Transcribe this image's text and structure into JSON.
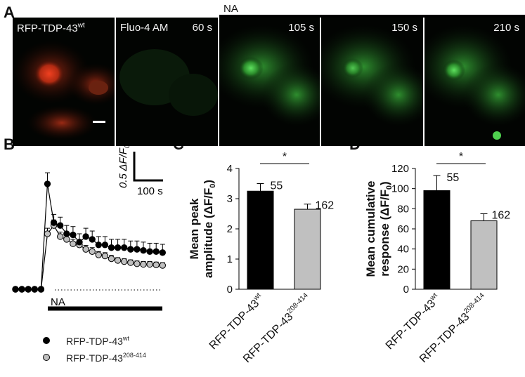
{
  "panel_letters": [
    "A",
    "B",
    "C",
    "D"
  ],
  "panelA": {
    "stimulus_label": "NA",
    "images": [
      {
        "label_main": "RFP-TDP-43",
        "label_sup": "wt",
        "time": ""
      },
      {
        "label_main": "Fluo-4 AM",
        "label_sup": "",
        "time": "60 s"
      },
      {
        "label_main": "",
        "label_sup": "",
        "time": "105 s"
      },
      {
        "label_main": "",
        "label_sup": "",
        "time": "150 s"
      },
      {
        "label_main": "",
        "label_sup": "",
        "time": "210 s"
      }
    ]
  },
  "colors": {
    "wt": "#000000",
    "mutant": "#c0c0c0",
    "rfp": "#d93a1e",
    "fluo": "#33c833"
  },
  "chart_data": [
    {
      "panel": "B",
      "type": "line",
      "stimulus_label": "NA",
      "scale_bar": {
        "y_label": "0.5 ΔF/F",
        "y_label_sub": "0",
        "x_label": "100 s"
      },
      "series": [
        {
          "name": "RFP-TDP-43",
          "name_sup": "wt",
          "x": [
            0,
            1,
            2,
            3,
            4,
            5,
            6,
            7,
            8,
            9,
            10,
            11,
            12,
            13,
            14,
            15,
            16,
            17,
            18,
            19,
            20,
            21,
            22,
            23
          ],
          "values": [
            0,
            0,
            0,
            0,
            0,
            1.9,
            1.2,
            1.15,
            1.0,
            0.98,
            0.85,
            0.95,
            0.9,
            0.8,
            0.8,
            0.75,
            0.75,
            0.75,
            0.72,
            0.72,
            0.7,
            0.68,
            0.68,
            0.66
          ],
          "errors": [
            0,
            0,
            0,
            0,
            0,
            0.2,
            0.15,
            0.15,
            0.15,
            0.15,
            0.15,
            0.15,
            0.15,
            0.15,
            0.15,
            0.15,
            0.15,
            0.15,
            0.15,
            0.15,
            0.15,
            0.15,
            0.15,
            0.15
          ]
        },
        {
          "name": "RFP-TDP-43",
          "name_sup": "208-414",
          "x": [
            0,
            1,
            2,
            3,
            4,
            5,
            6,
            7,
            8,
            9,
            10,
            11,
            12,
            13,
            14,
            15,
            16,
            17,
            18,
            19,
            20,
            21,
            22,
            23
          ],
          "values": [
            0,
            0,
            0,
            0,
            0,
            1.0,
            1.15,
            0.95,
            0.9,
            0.82,
            0.8,
            0.72,
            0.68,
            0.62,
            0.6,
            0.55,
            0.52,
            0.5,
            0.48,
            0.46,
            0.45,
            0.45,
            0.44,
            0.43
          ],
          "errors": [
            0,
            0,
            0,
            0,
            0,
            0.1,
            0.1,
            0.08,
            0.08,
            0.08,
            0.08,
            0.07,
            0.07,
            0.06,
            0.06,
            0.06,
            0.05,
            0.05,
            0.05,
            0.05,
            0.05,
            0.05,
            0.05,
            0.05
          ]
        }
      ]
    },
    {
      "panel": "C",
      "type": "bar",
      "ylabel_line1": "Mean peak",
      "ylabel_line2": "amplitude (ΔF/F",
      "ylabel_sub": "0",
      "ylim": [
        0,
        4
      ],
      "yticks": [
        "0",
        "1",
        "2",
        "3",
        "4"
      ],
      "categories": [
        {
          "main": "RFP-TDP-43",
          "sup": "wt"
        },
        {
          "main": "RFP-TDP-43",
          "sup": "208-414"
        }
      ],
      "values": [
        3.25,
        2.65
      ],
      "errors": [
        0.25,
        0.17
      ],
      "n_labels": [
        "55",
        "162"
      ],
      "significance": "*"
    },
    {
      "panel": "D",
      "type": "bar",
      "ylabel_line1": "Mean cumulative",
      "ylabel_line2": "response (ΔF/F",
      "ylabel_sub": "0",
      "ylim": [
        0,
        120
      ],
      "yticks": [
        "0",
        "20",
        "40",
        "60",
        "80",
        "100",
        "120"
      ],
      "categories": [
        {
          "main": "RFP-TDP-43",
          "sup": "wt"
        },
        {
          "main": "RFP-TDP-43",
          "sup": "208-414"
        }
      ],
      "values": [
        98,
        68
      ],
      "errors": [
        15,
        7
      ],
      "n_labels": [
        "55",
        "162"
      ],
      "significance": "*"
    }
  ]
}
